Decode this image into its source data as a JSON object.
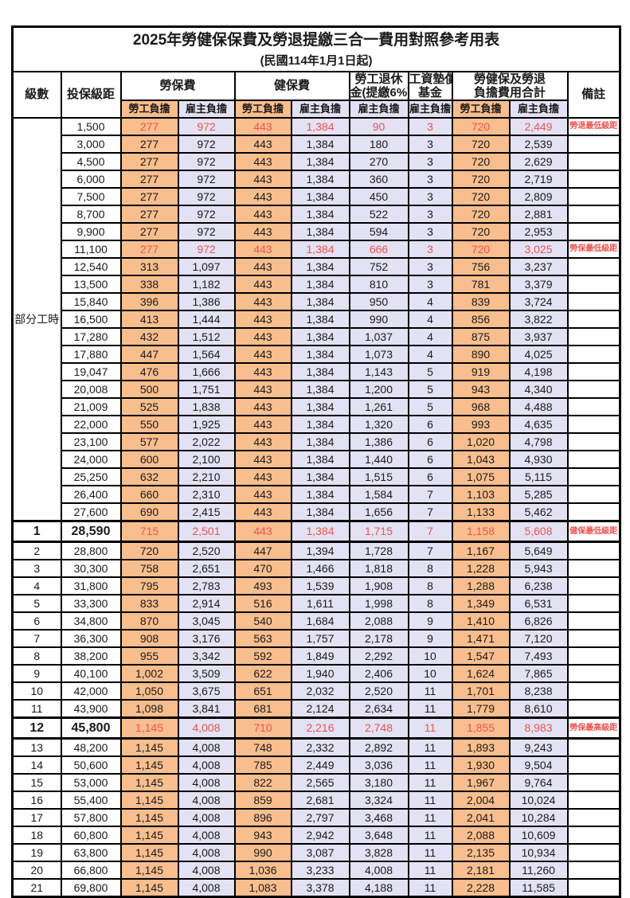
{
  "title": "2025年勞健保保費及勞退提繳三合一費用對照參考用表",
  "subtitle": "(民國114年1月1日起)",
  "header": {
    "level": "級數",
    "bracket": "投保級距",
    "labor_ins": "勞保費",
    "health_ins": "健保費",
    "pension": [
      "勞工退休",
      "金(提繳6%)"
    ],
    "wage_fund": [
      "工資墊償",
      "基金"
    ],
    "total": [
      "勞健保及勞退",
      "負擔費用合計"
    ],
    "remark": "備註",
    "employee_label": "勞工負擔",
    "employer_label": "雇主負擔"
  },
  "part_time_label": "部分工時",
  "colors": {
    "employee_bg": "#F9BE8E",
    "employer_bg": "#E3E2F4",
    "highlight_text": "#EF5350",
    "border": "#000000"
  },
  "rows": [
    {
      "level": "",
      "bracket": "1,500",
      "li_emp": "277",
      "li_er": "972",
      "hi_emp": "443",
      "hi_er": "1,384",
      "pension": "90",
      "wage": "3",
      "tot_emp": "720",
      "tot_er": "2,449",
      "remark": "勞退最低級距",
      "red": true,
      "em": false
    },
    {
      "level": "",
      "bracket": "3,000",
      "li_emp": "277",
      "li_er": "972",
      "hi_emp": "443",
      "hi_er": "1,384",
      "pension": "180",
      "wage": "3",
      "tot_emp": "720",
      "tot_er": "2,539",
      "remark": "",
      "red": false,
      "em": false
    },
    {
      "level": "",
      "bracket": "4,500",
      "li_emp": "277",
      "li_er": "972",
      "hi_emp": "443",
      "hi_er": "1,384",
      "pension": "270",
      "wage": "3",
      "tot_emp": "720",
      "tot_er": "2,629",
      "remark": "",
      "red": false,
      "em": false
    },
    {
      "level": "",
      "bracket": "6,000",
      "li_emp": "277",
      "li_er": "972",
      "hi_emp": "443",
      "hi_er": "1,384",
      "pension": "360",
      "wage": "3",
      "tot_emp": "720",
      "tot_er": "2,719",
      "remark": "",
      "red": false,
      "em": false
    },
    {
      "level": "",
      "bracket": "7,500",
      "li_emp": "277",
      "li_er": "972",
      "hi_emp": "443",
      "hi_er": "1,384",
      "pension": "450",
      "wage": "3",
      "tot_emp": "720",
      "tot_er": "2,809",
      "remark": "",
      "red": false,
      "em": false
    },
    {
      "level": "",
      "bracket": "8,700",
      "li_emp": "277",
      "li_er": "972",
      "hi_emp": "443",
      "hi_er": "1,384",
      "pension": "522",
      "wage": "3",
      "tot_emp": "720",
      "tot_er": "2,881",
      "remark": "",
      "red": false,
      "em": false
    },
    {
      "level": "",
      "bracket": "9,900",
      "li_emp": "277",
      "li_er": "972",
      "hi_emp": "443",
      "hi_er": "1,384",
      "pension": "594",
      "wage": "3",
      "tot_emp": "720",
      "tot_er": "2,953",
      "remark": "",
      "red": false,
      "em": false
    },
    {
      "level": "",
      "bracket": "11,100",
      "li_emp": "277",
      "li_er": "972",
      "hi_emp": "443",
      "hi_er": "1,384",
      "pension": "666",
      "wage": "3",
      "tot_emp": "720",
      "tot_er": "3,025",
      "remark": "勞保最低級距",
      "red": true,
      "em": false
    },
    {
      "level": "",
      "bracket": "12,540",
      "li_emp": "313",
      "li_er": "1,097",
      "hi_emp": "443",
      "hi_er": "1,384",
      "pension": "752",
      "wage": "3",
      "tot_emp": "756",
      "tot_er": "3,237",
      "remark": "",
      "red": false,
      "em": false
    },
    {
      "level": "",
      "bracket": "13,500",
      "li_emp": "338",
      "li_er": "1,182",
      "hi_emp": "443",
      "hi_er": "1,384",
      "pension": "810",
      "wage": "3",
      "tot_emp": "781",
      "tot_er": "3,379",
      "remark": "",
      "red": false,
      "em": false
    },
    {
      "level": "",
      "bracket": "15,840",
      "li_emp": "396",
      "li_er": "1,386",
      "hi_emp": "443",
      "hi_er": "1,384",
      "pension": "950",
      "wage": "4",
      "tot_emp": "839",
      "tot_er": "3,724",
      "remark": "",
      "red": false,
      "em": false
    },
    {
      "level": "",
      "bracket": "16,500",
      "li_emp": "413",
      "li_er": "1,444",
      "hi_emp": "443",
      "hi_er": "1,384",
      "pension": "990",
      "wage": "4",
      "tot_emp": "856",
      "tot_er": "3,822",
      "remark": "",
      "red": false,
      "em": false
    },
    {
      "level": "",
      "bracket": "17,280",
      "li_emp": "432",
      "li_er": "1,512",
      "hi_emp": "443",
      "hi_er": "1,384",
      "pension": "1,037",
      "wage": "4",
      "tot_emp": "875",
      "tot_er": "3,937",
      "remark": "",
      "red": false,
      "em": false
    },
    {
      "level": "",
      "bracket": "17,880",
      "li_emp": "447",
      "li_er": "1,564",
      "hi_emp": "443",
      "hi_er": "1,384",
      "pension": "1,073",
      "wage": "4",
      "tot_emp": "890",
      "tot_er": "4,025",
      "remark": "",
      "red": false,
      "em": false
    },
    {
      "level": "",
      "bracket": "19,047",
      "li_emp": "476",
      "li_er": "1,666",
      "hi_emp": "443",
      "hi_er": "1,384",
      "pension": "1,143",
      "wage": "5",
      "tot_emp": "919",
      "tot_er": "4,198",
      "remark": "",
      "red": false,
      "em": false
    },
    {
      "level": "",
      "bracket": "20,008",
      "li_emp": "500",
      "li_er": "1,751",
      "hi_emp": "443",
      "hi_er": "1,384",
      "pension": "1,200",
      "wage": "5",
      "tot_emp": "943",
      "tot_er": "4,340",
      "remark": "",
      "red": false,
      "em": false
    },
    {
      "level": "",
      "bracket": "21,009",
      "li_emp": "525",
      "li_er": "1,838",
      "hi_emp": "443",
      "hi_er": "1,384",
      "pension": "1,261",
      "wage": "5",
      "tot_emp": "968",
      "tot_er": "4,488",
      "remark": "",
      "red": false,
      "em": false
    },
    {
      "level": "",
      "bracket": "22,000",
      "li_emp": "550",
      "li_er": "1,925",
      "hi_emp": "443",
      "hi_er": "1,384",
      "pension": "1,320",
      "wage": "6",
      "tot_emp": "993",
      "tot_er": "4,635",
      "remark": "",
      "red": false,
      "em": false
    },
    {
      "level": "",
      "bracket": "23,100",
      "li_emp": "577",
      "li_er": "2,022",
      "hi_emp": "443",
      "hi_er": "1,384",
      "pension": "1,386",
      "wage": "6",
      "tot_emp": "1,020",
      "tot_er": "4,798",
      "remark": "",
      "red": false,
      "em": false
    },
    {
      "level": "",
      "bracket": "24,000",
      "li_emp": "600",
      "li_er": "2,100",
      "hi_emp": "443",
      "hi_er": "1,384",
      "pension": "1,440",
      "wage": "6",
      "tot_emp": "1,043",
      "tot_er": "4,930",
      "remark": "",
      "red": false,
      "em": false
    },
    {
      "level": "",
      "bracket": "25,250",
      "li_emp": "632",
      "li_er": "2,210",
      "hi_emp": "443",
      "hi_er": "1,384",
      "pension": "1,515",
      "wage": "6",
      "tot_emp": "1,075",
      "tot_er": "5,115",
      "remark": "",
      "red": false,
      "em": false
    },
    {
      "level": "",
      "bracket": "26,400",
      "li_emp": "660",
      "li_er": "2,310",
      "hi_emp": "443",
      "hi_er": "1,384",
      "pension": "1,584",
      "wage": "7",
      "tot_emp": "1,103",
      "tot_er": "5,285",
      "remark": "",
      "red": false,
      "em": false
    },
    {
      "level": "",
      "bracket": "27,600",
      "li_emp": "690",
      "li_er": "2,415",
      "hi_emp": "443",
      "hi_er": "1,384",
      "pension": "1,656",
      "wage": "7",
      "tot_emp": "1,133",
      "tot_er": "5,462",
      "remark": "",
      "red": false,
      "em": false
    },
    {
      "level": "1",
      "bracket": "28,590",
      "li_emp": "715",
      "li_er": "2,501",
      "hi_emp": "443",
      "hi_er": "1,384",
      "pension": "1,715",
      "wage": "7",
      "tot_emp": "1,158",
      "tot_er": "5,608",
      "remark": "健保最低級距",
      "red": true,
      "em": true
    },
    {
      "level": "2",
      "bracket": "28,800",
      "li_emp": "720",
      "li_er": "2,520",
      "hi_emp": "447",
      "hi_er": "1,394",
      "pension": "1,728",
      "wage": "7",
      "tot_emp": "1,167",
      "tot_er": "5,649",
      "remark": "",
      "red": false,
      "em": false
    },
    {
      "level": "3",
      "bracket": "30,300",
      "li_emp": "758",
      "li_er": "2,651",
      "hi_emp": "470",
      "hi_er": "1,466",
      "pension": "1,818",
      "wage": "8",
      "tot_emp": "1,228",
      "tot_er": "5,943",
      "remark": "",
      "red": false,
      "em": false
    },
    {
      "level": "4",
      "bracket": "31,800",
      "li_emp": "795",
      "li_er": "2,783",
      "hi_emp": "493",
      "hi_er": "1,539",
      "pension": "1,908",
      "wage": "8",
      "tot_emp": "1,288",
      "tot_er": "6,238",
      "remark": "",
      "red": false,
      "em": false
    },
    {
      "level": "5",
      "bracket": "33,300",
      "li_emp": "833",
      "li_er": "2,914",
      "hi_emp": "516",
      "hi_er": "1,611",
      "pension": "1,998",
      "wage": "8",
      "tot_emp": "1,349",
      "tot_er": "6,531",
      "remark": "",
      "red": false,
      "em": false
    },
    {
      "level": "6",
      "bracket": "34,800",
      "li_emp": "870",
      "li_er": "3,045",
      "hi_emp": "540",
      "hi_er": "1,684",
      "pension": "2,088",
      "wage": "9",
      "tot_emp": "1,410",
      "tot_er": "6,826",
      "remark": "",
      "red": false,
      "em": false
    },
    {
      "level": "7",
      "bracket": "36,300",
      "li_emp": "908",
      "li_er": "3,176",
      "hi_emp": "563",
      "hi_er": "1,757",
      "pension": "2,178",
      "wage": "9",
      "tot_emp": "1,471",
      "tot_er": "7,120",
      "remark": "",
      "red": false,
      "em": false
    },
    {
      "level": "8",
      "bracket": "38,200",
      "li_emp": "955",
      "li_er": "3,342",
      "hi_emp": "592",
      "hi_er": "1,849",
      "pension": "2,292",
      "wage": "10",
      "tot_emp": "1,547",
      "tot_er": "7,493",
      "remark": "",
      "red": false,
      "em": false
    },
    {
      "level": "9",
      "bracket": "40,100",
      "li_emp": "1,002",
      "li_er": "3,509",
      "hi_emp": "622",
      "hi_er": "1,940",
      "pension": "2,406",
      "wage": "10",
      "tot_emp": "1,624",
      "tot_er": "7,865",
      "remark": "",
      "red": false,
      "em": false
    },
    {
      "level": "10",
      "bracket": "42,000",
      "li_emp": "1,050",
      "li_er": "3,675",
      "hi_emp": "651",
      "hi_er": "2,032",
      "pension": "2,520",
      "wage": "11",
      "tot_emp": "1,701",
      "tot_er": "8,238",
      "remark": "",
      "red": false,
      "em": false
    },
    {
      "level": "11",
      "bracket": "43,900",
      "li_emp": "1,098",
      "li_er": "3,841",
      "hi_emp": "681",
      "hi_er": "2,124",
      "pension": "2,634",
      "wage": "11",
      "tot_emp": "1,779",
      "tot_er": "8,610",
      "remark": "",
      "red": false,
      "em": false
    },
    {
      "level": "12",
      "bracket": "45,800",
      "li_emp": "1,145",
      "li_er": "4,008",
      "hi_emp": "710",
      "hi_er": "2,216",
      "pension": "2,748",
      "wage": "11",
      "tot_emp": "1,855",
      "tot_er": "8,983",
      "remark": "勞保最高級距",
      "red": true,
      "em": true
    },
    {
      "level": "13",
      "bracket": "48,200",
      "li_emp": "1,145",
      "li_er": "4,008",
      "hi_emp": "748",
      "hi_er": "2,332",
      "pension": "2,892",
      "wage": "11",
      "tot_emp": "1,893",
      "tot_er": "9,243",
      "remark": "",
      "red": false,
      "em": false
    },
    {
      "level": "14",
      "bracket": "50,600",
      "li_emp": "1,145",
      "li_er": "4,008",
      "hi_emp": "785",
      "hi_er": "2,449",
      "pension": "3,036",
      "wage": "11",
      "tot_emp": "1,930",
      "tot_er": "9,504",
      "remark": "",
      "red": false,
      "em": false
    },
    {
      "level": "15",
      "bracket": "53,000",
      "li_emp": "1,145",
      "li_er": "4,008",
      "hi_emp": "822",
      "hi_er": "2,565",
      "pension": "3,180",
      "wage": "11",
      "tot_emp": "1,967",
      "tot_er": "9,764",
      "remark": "",
      "red": false,
      "em": false
    },
    {
      "level": "16",
      "bracket": "55,400",
      "li_emp": "1,145",
      "li_er": "4,008",
      "hi_emp": "859",
      "hi_er": "2,681",
      "pension": "3,324",
      "wage": "11",
      "tot_emp": "2,004",
      "tot_er": "10,024",
      "remark": "",
      "red": false,
      "em": false
    },
    {
      "level": "17",
      "bracket": "57,800",
      "li_emp": "1,145",
      "li_er": "4,008",
      "hi_emp": "896",
      "hi_er": "2,797",
      "pension": "3,468",
      "wage": "11",
      "tot_emp": "2,041",
      "tot_er": "10,284",
      "remark": "",
      "red": false,
      "em": false
    },
    {
      "level": "18",
      "bracket": "60,800",
      "li_emp": "1,145",
      "li_er": "4,008",
      "hi_emp": "943",
      "hi_er": "2,942",
      "pension": "3,648",
      "wage": "11",
      "tot_emp": "2,088",
      "tot_er": "10,609",
      "remark": "",
      "red": false,
      "em": false
    },
    {
      "level": "19",
      "bracket": "63,800",
      "li_emp": "1,145",
      "li_er": "4,008",
      "hi_emp": "990",
      "hi_er": "3,087",
      "pension": "3,828",
      "wage": "11",
      "tot_emp": "2,135",
      "tot_er": "10,934",
      "remark": "",
      "red": false,
      "em": false
    },
    {
      "level": "20",
      "bracket": "66,800",
      "li_emp": "1,145",
      "li_er": "4,008",
      "hi_emp": "1,036",
      "hi_er": "3,233",
      "pension": "4,008",
      "wage": "11",
      "tot_emp": "2,181",
      "tot_er": "11,260",
      "remark": "",
      "red": false,
      "em": false
    },
    {
      "level": "21",
      "bracket": "69,800",
      "li_emp": "1,145",
      "li_er": "4,008",
      "hi_emp": "1,083",
      "hi_er": "3,378",
      "pension": "4,188",
      "wage": "11",
      "tot_emp": "2,228",
      "tot_er": "11,585",
      "remark": "",
      "red": false,
      "em": false
    }
  ]
}
